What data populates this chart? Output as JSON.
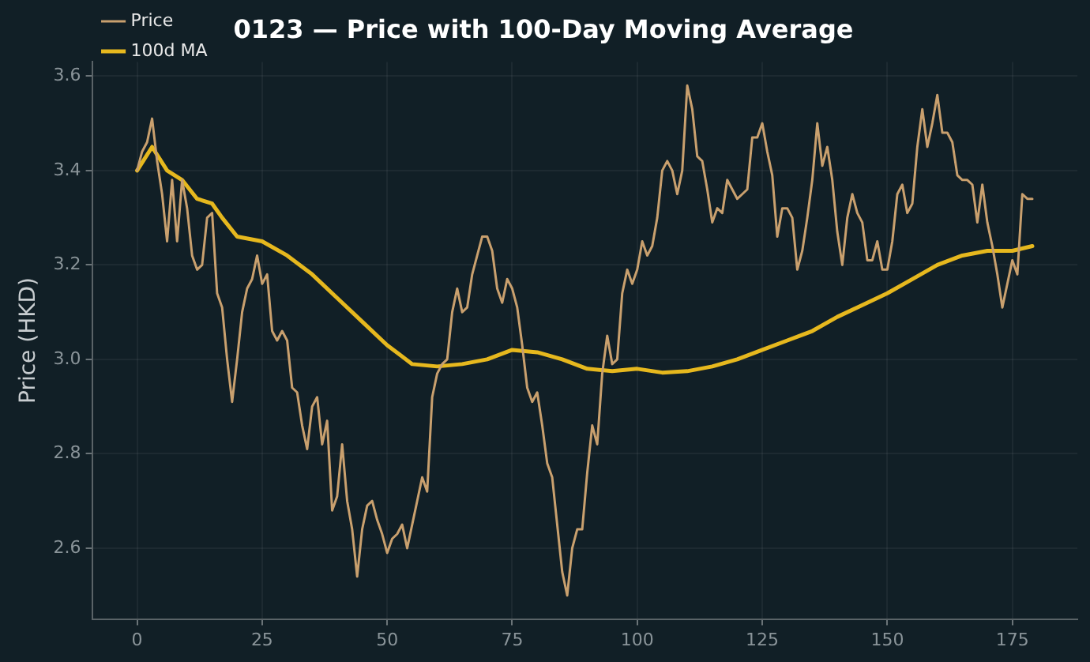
{
  "chart_data": {
    "type": "line",
    "title": "0123 — Price with 100-Day Moving Average",
    "ylabel": "Price (HKD)",
    "x": [
      0,
      1,
      2,
      3,
      4,
      5,
      6,
      7,
      8,
      9,
      10,
      11,
      12,
      13,
      14,
      15,
      16,
      17,
      18,
      19,
      20,
      21,
      22,
      23,
      24,
      25,
      26,
      27,
      28,
      29,
      30,
      31,
      32,
      33,
      34,
      35,
      36,
      37,
      38,
      39,
      40,
      41,
      42,
      43,
      44,
      45,
      46,
      47,
      48,
      49,
      50,
      51,
      52,
      53,
      54,
      55,
      56,
      57,
      58,
      59,
      60,
      61,
      62,
      63,
      64,
      65,
      66,
      67,
      68,
      69,
      70,
      71,
      72,
      73,
      74,
      75,
      76,
      77,
      78,
      79,
      80,
      81,
      82,
      83,
      84,
      85,
      86,
      87,
      88,
      89,
      90,
      91,
      92,
      93,
      94,
      95,
      96,
      97,
      98,
      99,
      100,
      101,
      102,
      103,
      104,
      105,
      106,
      107,
      108,
      109,
      110,
      111,
      112,
      113,
      114,
      115,
      116,
      117,
      118,
      119,
      120,
      121,
      122,
      123,
      124,
      125,
      126,
      127,
      128,
      129,
      130,
      131,
      132,
      133,
      134,
      135,
      136,
      137,
      138,
      139,
      140,
      141,
      142,
      143,
      144,
      145,
      146,
      147,
      148,
      149,
      150,
      151,
      152,
      153,
      154,
      155,
      156,
      157,
      158,
      159,
      160,
      161,
      162,
      163,
      164,
      165,
      166,
      167,
      168,
      169,
      170,
      171,
      172,
      173,
      174,
      175,
      176,
      177,
      178,
      179
    ],
    "series": [
      {
        "name": "Price",
        "color": "#c9a06e",
        "values": [
          3.4,
          3.44,
          3.46,
          3.51,
          3.42,
          3.35,
          3.25,
          3.38,
          3.25,
          3.38,
          3.32,
          3.22,
          3.19,
          3.2,
          3.3,
          3.31,
          3.14,
          3.11,
          3.0,
          2.91,
          3.0,
          3.1,
          3.15,
          3.17,
          3.22,
          3.16,
          3.18,
          3.06,
          3.04,
          3.06,
          3.04,
          2.94,
          2.93,
          2.86,
          2.81,
          2.9,
          2.92,
          2.82,
          2.87,
          2.68,
          2.71,
          2.82,
          2.7,
          2.64,
          2.54,
          2.64,
          2.69,
          2.7,
          2.66,
          2.63,
          2.59,
          2.62,
          2.63,
          2.65,
          2.6,
          2.65,
          2.7,
          2.75,
          2.72,
          2.92,
          2.97,
          2.99,
          3.0,
          3.1,
          3.15,
          3.1,
          3.11,
          3.18,
          3.22,
          3.26,
          3.26,
          3.23,
          3.15,
          3.12,
          3.17,
          3.15,
          3.11,
          3.03,
          2.94,
          2.91,
          2.93,
          2.86,
          2.78,
          2.75,
          2.65,
          2.55,
          2.5,
          2.6,
          2.64,
          2.64,
          2.76,
          2.86,
          2.82,
          2.97,
          3.05,
          2.99,
          3.0,
          3.14,
          3.19,
          3.16,
          3.19,
          3.25,
          3.22,
          3.24,
          3.3,
          3.4,
          3.42,
          3.4,
          3.35,
          3.4,
          3.58,
          3.53,
          3.43,
          3.42,
          3.36,
          3.29,
          3.32,
          3.31,
          3.38,
          3.36,
          3.34,
          3.35,
          3.36,
          3.47,
          3.47,
          3.5,
          3.44,
          3.39,
          3.26,
          3.32,
          3.32,
          3.3,
          3.19,
          3.23,
          3.3,
          3.38,
          3.5,
          3.41,
          3.45,
          3.38,
          3.27,
          3.2,
          3.3,
          3.35,
          3.31,
          3.29,
          3.21,
          3.21,
          3.25,
          3.19,
          3.19,
          3.25,
          3.35,
          3.37,
          3.31,
          3.33,
          3.45,
          3.53,
          3.45,
          3.5,
          3.56,
          3.48,
          3.48,
          3.46,
          3.39,
          3.38,
          3.38,
          3.37,
          3.29,
          3.37,
          3.29,
          3.24,
          3.18,
          3.11,
          3.16,
          3.21,
          3.18,
          3.35,
          3.34,
          3.34
        ]
      },
      {
        "name": "100d MA",
        "color": "#e6b81e",
        "x": [
          0,
          3,
          6,
          9,
          12,
          15,
          17,
          20,
          25,
          30,
          35,
          40,
          45,
          50,
          55,
          60,
          65,
          70,
          75,
          80,
          85,
          90,
          95,
          100,
          105,
          110,
          115,
          120,
          125,
          130,
          135,
          140,
          145,
          150,
          155,
          160,
          165,
          170,
          175,
          179
        ],
        "values": [
          3.4,
          3.45,
          3.4,
          3.38,
          3.34,
          3.33,
          3.3,
          3.26,
          3.25,
          3.22,
          3.18,
          3.13,
          3.08,
          3.03,
          2.99,
          2.985,
          2.99,
          3.0,
          3.02,
          3.015,
          3.0,
          2.98,
          2.975,
          2.98,
          2.972,
          2.975,
          2.985,
          3.0,
          3.02,
          3.04,
          3.06,
          3.09,
          3.115,
          3.14,
          3.17,
          3.2,
          3.22,
          3.23,
          3.23,
          3.24
        ]
      }
    ],
    "xlim": [
      -9,
      188
    ],
    "xticks": [
      0,
      25,
      50,
      75,
      100,
      125,
      150,
      175
    ],
    "ylim": [
      2.45,
      3.63
    ],
    "yticks": [
      2.6,
      2.8,
      {
        "value": 3.0,
        "label": "3.0"
      },
      3.2,
      3.4,
      3.6
    ],
    "grid": true,
    "legend": "top left",
    "marker": "none",
    "line_style": "solid"
  }
}
